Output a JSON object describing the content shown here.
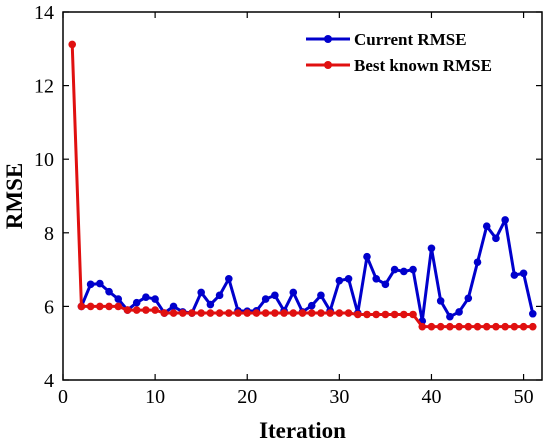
{
  "chart_data": {
    "type": "line",
    "title": "",
    "xlabel": "Iteration",
    "ylabel": "RMSE",
    "xlim": [
      0,
      52
    ],
    "ylim": [
      4,
      14
    ],
    "xticks": [
      0,
      10,
      20,
      30,
      40,
      50
    ],
    "yticks": [
      4,
      6,
      8,
      10,
      12,
      14
    ],
    "grid": false,
    "legend_position": "top-right",
    "series": [
      {
        "name": "Current RMSE",
        "color": "#0000cc",
        "x": [
          2,
          3,
          4,
          5,
          6,
          7,
          8,
          9,
          10,
          11,
          12,
          13,
          14,
          15,
          16,
          17,
          18,
          19,
          20,
          21,
          22,
          23,
          24,
          25,
          26,
          27,
          28,
          29,
          30,
          31,
          32,
          33,
          34,
          35,
          36,
          37,
          38,
          39,
          40,
          41,
          42,
          43,
          44,
          45,
          46,
          47,
          48,
          49,
          50,
          51
        ],
        "values": [
          6.0,
          6.6,
          6.62,
          6.4,
          6.2,
          5.9,
          6.1,
          6.25,
          6.2,
          5.82,
          6.0,
          5.85,
          5.82,
          6.38,
          6.05,
          6.3,
          6.75,
          5.88,
          5.87,
          5.88,
          6.2,
          6.3,
          5.88,
          6.38,
          5.85,
          6.02,
          6.3,
          5.88,
          6.7,
          6.75,
          5.82,
          7.35,
          6.75,
          6.6,
          7.0,
          6.95,
          7.0,
          5.6,
          7.58,
          6.15,
          5.72,
          5.85,
          6.22,
          7.2,
          8.18,
          7.85,
          8.35,
          6.85,
          6.9,
          5.8
        ]
      },
      {
        "name": "Best known RMSE",
        "color": "#e01010",
        "x": [
          1,
          2,
          3,
          4,
          5,
          6,
          7,
          8,
          9,
          10,
          11,
          12,
          13,
          14,
          15,
          16,
          17,
          18,
          19,
          20,
          21,
          22,
          23,
          24,
          25,
          26,
          27,
          28,
          29,
          30,
          31,
          32,
          33,
          34,
          35,
          36,
          37,
          38,
          39,
          40,
          41,
          42,
          43,
          44,
          45,
          46,
          47,
          48,
          49,
          50,
          51
        ],
        "values": [
          13.12,
          6.0,
          6.0,
          6.0,
          6.0,
          6.0,
          5.9,
          5.9,
          5.9,
          5.9,
          5.82,
          5.82,
          5.82,
          5.82,
          5.82,
          5.82,
          5.82,
          5.82,
          5.82,
          5.82,
          5.82,
          5.82,
          5.82,
          5.82,
          5.82,
          5.82,
          5.82,
          5.82,
          5.82,
          5.82,
          5.82,
          5.78,
          5.78,
          5.78,
          5.78,
          5.78,
          5.78,
          5.78,
          5.45,
          5.45,
          5.45,
          5.45,
          5.45,
          5.45,
          5.45,
          5.45,
          5.45,
          5.45,
          5.45,
          5.45,
          5.45
        ]
      }
    ]
  }
}
